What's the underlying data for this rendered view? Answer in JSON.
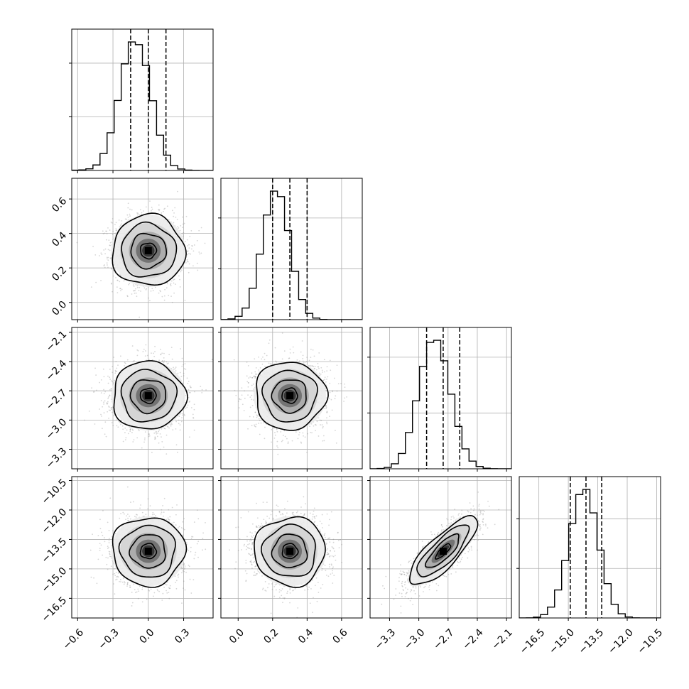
{
  "chart_data": {
    "type": "corner",
    "n_params": 4,
    "grid": true,
    "quantile_lines": "dashed",
    "params": [
      {
        "range": [
          -0.65,
          0.55
        ],
        "ticks": [
          -0.6,
          -0.3,
          0.0,
          0.3
        ],
        "tick_labels": [
          "−0.6",
          "−0.3",
          "0.0",
          "0.3"
        ],
        "mean": 0.0,
        "sd": 0.15,
        "quantiles": [
          -0.15,
          0.0,
          0.15
        ]
      },
      {
        "range": [
          -0.1,
          0.72
        ],
        "ticks": [
          0.0,
          0.2,
          0.4,
          0.6
        ],
        "tick_labels": [
          "0.0",
          "0.2",
          "0.4",
          "0.6"
        ],
        "mean": 0.3,
        "sd": 0.1,
        "quantiles": [
          0.2,
          0.3,
          0.4
        ]
      },
      {
        "range": [
          -3.5,
          -2.05
        ],
        "ticks": [
          -3.3,
          -3.0,
          -2.7,
          -2.4,
          -2.1
        ],
        "tick_labels": [
          "−3.3",
          "−3.0",
          "−2.7",
          "−2.4",
          "−2.1"
        ],
        "mean": -2.75,
        "sd": 0.17,
        "quantiles": [
          -2.92,
          -2.75,
          -2.58
        ]
      },
      {
        "range": [
          -17.5,
          -10.3
        ],
        "ticks": [
          -16.5,
          -15.0,
          -13.5,
          -12.0,
          -10.5
        ],
        "tick_labels": [
          "−16.5",
          "−15.0",
          "−13.5",
          "−12.0",
          "−10.5"
        ],
        "mean": -14.1,
        "sd": 0.85,
        "quantiles": [
          -14.9,
          -14.1,
          -13.3
        ]
      }
    ],
    "histograms": [
      {
        "param": 0,
        "bins": 20,
        "range": [
          -0.65,
          0.55
        ],
        "counts": [
          2,
          4,
          12,
          41,
          126,
          281,
          522,
          795,
          958,
          938,
          783,
          520,
          263,
          114,
          36,
          11,
          3,
          1,
          0,
          0
        ]
      },
      {
        "param": 1,
        "bins": 20,
        "range": [
          -0.1,
          0.72
        ],
        "counts": [
          1,
          6,
          26,
          91,
          247,
          515,
          823,
          1011,
          968,
          701,
          380,
          158,
          49,
          12,
          2,
          0,
          0,
          0,
          0,
          0
        ]
      },
      {
        "param": 2,
        "bins": 20,
        "range": [
          -3.5,
          -2.05
        ],
        "counts": [
          0,
          2,
          10,
          36,
          110,
          260,
          487,
          734,
          906,
          921,
          774,
          535,
          304,
          143,
          55,
          17,
          4,
          1,
          0,
          0
        ]
      },
      {
        "param": 3,
        "bins": 20,
        "range": [
          -17.5,
          -10.3
        ],
        "counts": [
          0,
          1,
          7,
          27,
          88,
          226,
          463,
          762,
          996,
          1037,
          848,
          548,
          277,
          110,
          34,
          8,
          1,
          0,
          0,
          0
        ]
      }
    ],
    "pairs": [
      {
        "x": 0,
        "y": 1,
        "correlation": 0.0
      },
      {
        "x": 0,
        "y": 2,
        "correlation": 0.0
      },
      {
        "x": 1,
        "y": 2,
        "correlation": 0.0
      },
      {
        "x": 0,
        "y": 3,
        "correlation": 0.0
      },
      {
        "x": 1,
        "y": 3,
        "correlation": 0.0
      },
      {
        "x": 2,
        "y": 3,
        "correlation": 0.8
      }
    ]
  }
}
